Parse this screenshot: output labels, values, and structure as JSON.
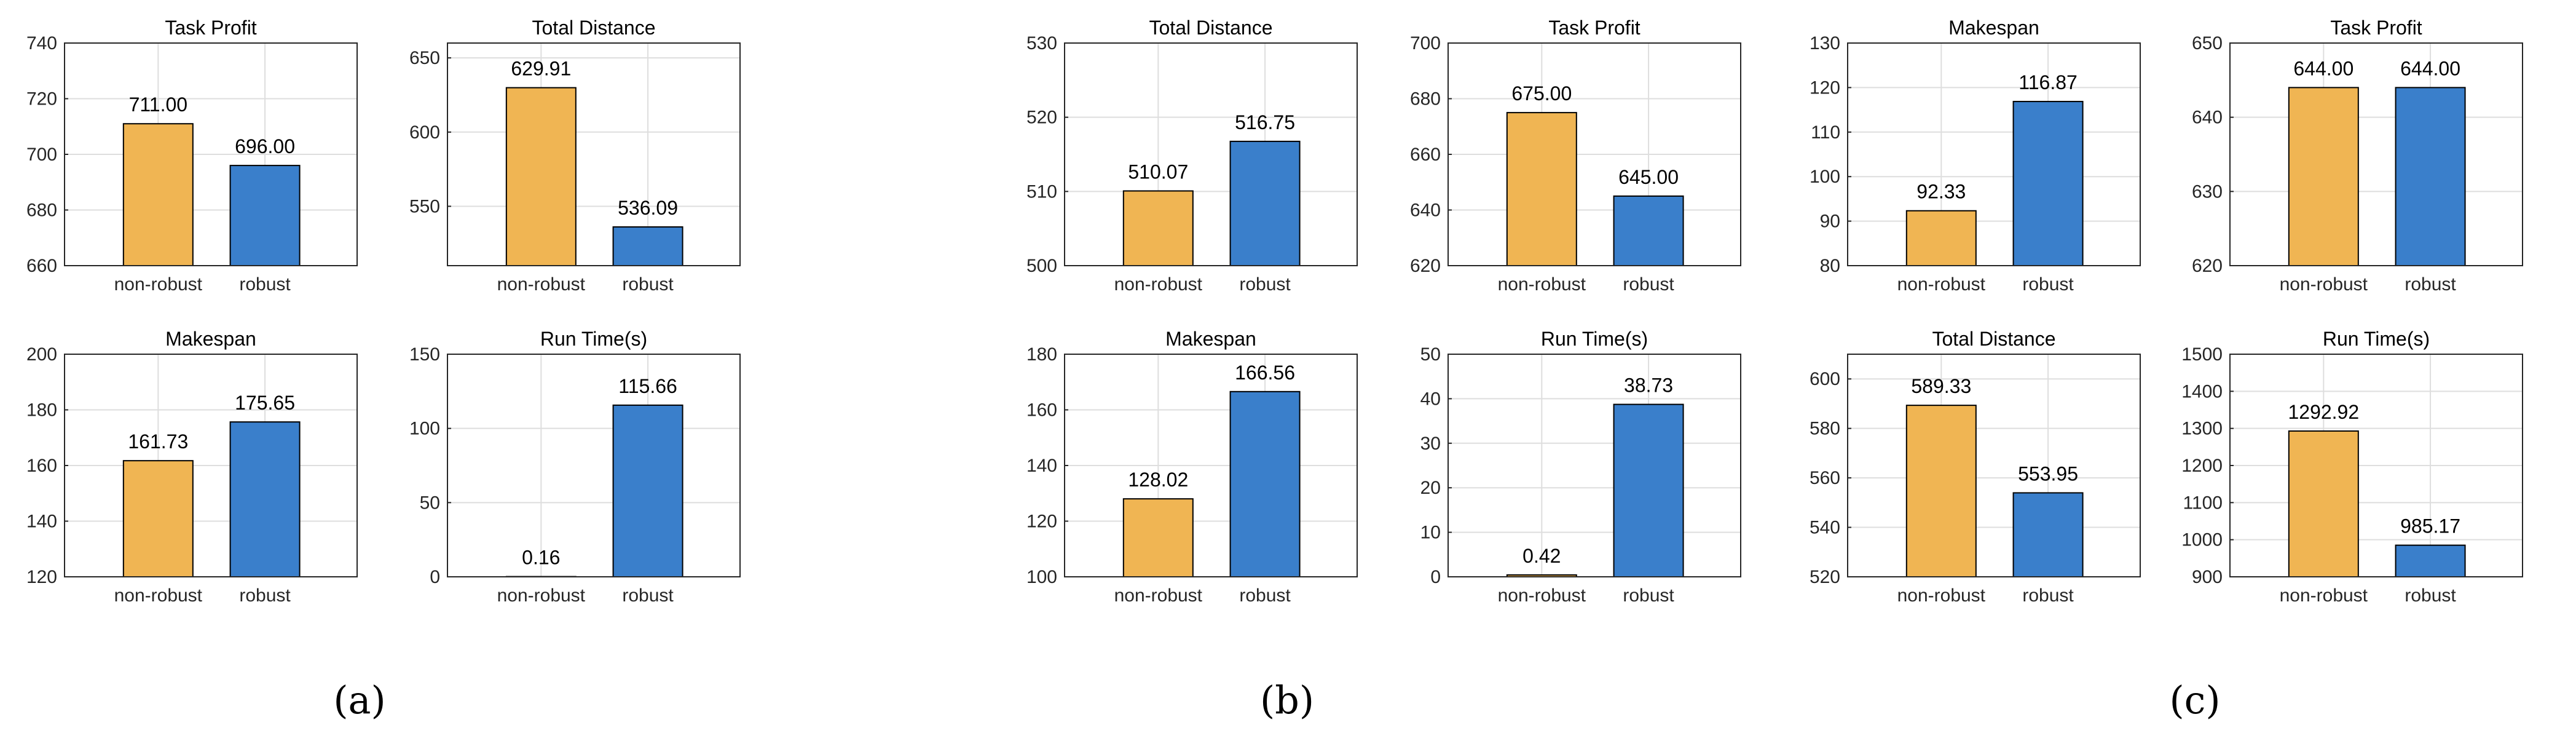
{
  "colors": {
    "non_robust": "#F0B553",
    "robust": "#3A7FCB"
  },
  "panel_labels": [
    "(a)",
    "(b)",
    "(c)"
  ],
  "chart_data": [
    {
      "type": "bar",
      "panel": "a",
      "title": "Task Profit",
      "categories": [
        "non-robust",
        "robust"
      ],
      "values": [
        711.0,
        696.0
      ],
      "value_labels": [
        "711.00",
        "696.00"
      ],
      "ylim": [
        660,
        740
      ],
      "yticks": [
        660,
        680,
        700,
        720,
        740
      ]
    },
    {
      "type": "bar",
      "panel": "a",
      "title": "Total Distance",
      "categories": [
        "non-robust",
        "robust"
      ],
      "values": [
        629.91,
        536.09
      ],
      "value_labels": [
        "629.91",
        "536.09"
      ],
      "ylim": [
        510,
        660
      ],
      "yticks": [
        550,
        600,
        650
      ]
    },
    {
      "type": "bar",
      "panel": "a",
      "title": "Makespan",
      "categories": [
        "non-robust",
        "robust"
      ],
      "values": [
        161.73,
        175.65
      ],
      "value_labels": [
        "161.73",
        "175.65"
      ],
      "ylim": [
        120,
        200
      ],
      "yticks": [
        120,
        140,
        160,
        180,
        200
      ]
    },
    {
      "type": "bar",
      "panel": "a",
      "title": "Run Time(s)",
      "categories": [
        "non-robust",
        "robust"
      ],
      "values": [
        0.16,
        115.66
      ],
      "value_labels": [
        "0.16",
        "115.66"
      ],
      "ylim": [
        0,
        150
      ],
      "yticks": [
        0,
        50,
        100,
        150
      ]
    },
    {
      "type": "bar",
      "panel": "b",
      "title": "Total Distance",
      "categories": [
        "non-robust",
        "robust"
      ],
      "values": [
        510.07,
        516.75
      ],
      "value_labels": [
        "510.07",
        "516.75"
      ],
      "ylim": [
        500,
        530
      ],
      "yticks": [
        500,
        510,
        520,
        530
      ]
    },
    {
      "type": "bar",
      "panel": "b",
      "title": "Task Profit",
      "categories": [
        "non-robust",
        "robust"
      ],
      "values": [
        675.0,
        645.0
      ],
      "value_labels": [
        "675.00",
        "645.00"
      ],
      "ylim": [
        620,
        700
      ],
      "yticks": [
        620,
        640,
        660,
        680,
        700
      ]
    },
    {
      "type": "bar",
      "panel": "b",
      "title": "Makespan",
      "categories": [
        "non-robust",
        "robust"
      ],
      "values": [
        128.02,
        166.56
      ],
      "value_labels": [
        "128.02",
        "166.56"
      ],
      "ylim": [
        100,
        180
      ],
      "yticks": [
        100,
        120,
        140,
        160,
        180
      ]
    },
    {
      "type": "bar",
      "panel": "b",
      "title": "Run Time(s)",
      "categories": [
        "non-robust",
        "robust"
      ],
      "values": [
        0.42,
        38.73
      ],
      "value_labels": [
        "0.42",
        "38.73"
      ],
      "ylim": [
        0,
        50
      ],
      "yticks": [
        0,
        10,
        20,
        30,
        40,
        50
      ]
    },
    {
      "type": "bar",
      "panel": "c",
      "title": "Makespan",
      "categories": [
        "non-robust",
        "robust"
      ],
      "values": [
        92.33,
        116.87
      ],
      "value_labels": [
        "92.33",
        "116.87"
      ],
      "ylim": [
        80,
        130
      ],
      "yticks": [
        80,
        90,
        100,
        110,
        120,
        130
      ]
    },
    {
      "type": "bar",
      "panel": "c",
      "title": "Task Profit",
      "categories": [
        "non-robust",
        "robust"
      ],
      "values": [
        644.0,
        644.0
      ],
      "value_labels": [
        "644.00",
        "644.00"
      ],
      "ylim": [
        620,
        650
      ],
      "yticks": [
        620,
        630,
        640,
        650
      ]
    },
    {
      "type": "bar",
      "panel": "c",
      "title": "Total Distance",
      "categories": [
        "non-robust",
        "robust"
      ],
      "values": [
        589.33,
        553.95
      ],
      "value_labels": [
        "589.33",
        "553.95"
      ],
      "ylim": [
        520,
        610
      ],
      "yticks": [
        520,
        540,
        560,
        580,
        600
      ]
    },
    {
      "type": "bar",
      "panel": "c",
      "title": "Run Time(s)",
      "categories": [
        "non-robust",
        "robust"
      ],
      "values": [
        1292.92,
        985.17
      ],
      "value_labels": [
        "1292.92",
        "985.17"
      ],
      "ylim": [
        900,
        1500
      ],
      "yticks": [
        900,
        1000,
        1100,
        1200,
        1300,
        1400,
        1500
      ]
    }
  ]
}
